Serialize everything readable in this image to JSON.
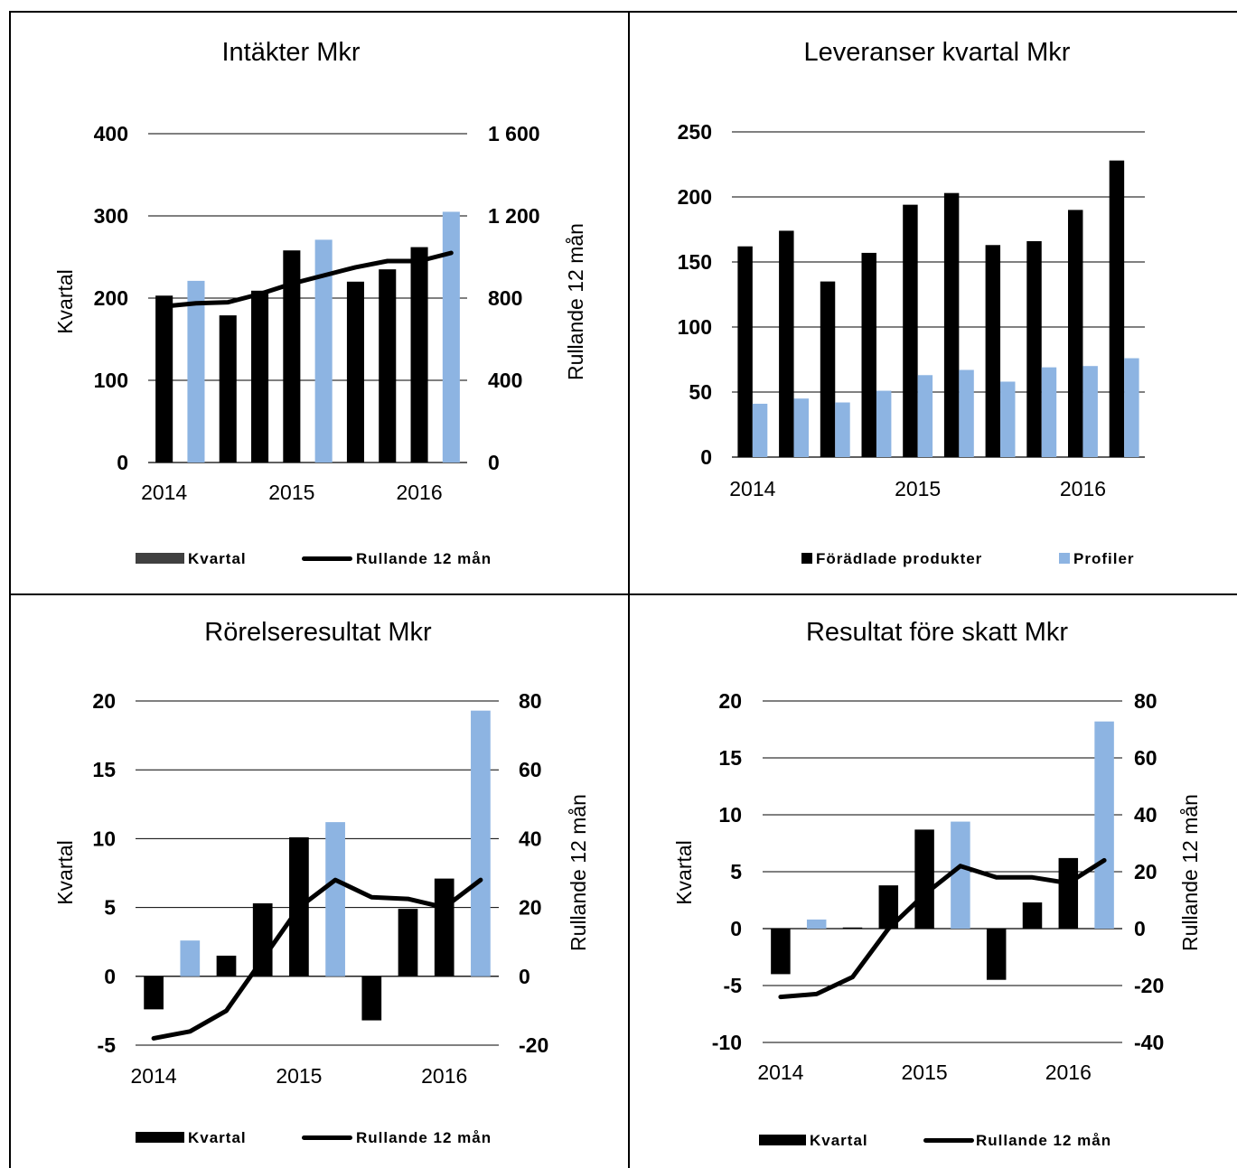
{
  "colors": {
    "dark": "#000000",
    "light": "#8db4e2",
    "legend_gray": "#404040"
  },
  "chart_data": [
    {
      "type": "bar",
      "title": "Intäkter Mkr",
      "categories": [
        "2014 Q1",
        "2014 Q2",
        "2014 Q3",
        "2014 Q4",
        "2015 Q1",
        "2015 Q2",
        "2015 Q3",
        "2015 Q4",
        "2016 Q1",
        "2016 Q2"
      ],
      "x_tick_labels": [
        "2014",
        "2015",
        "2016"
      ],
      "ylabel": "Kvartal",
      "y2label": "Rullande 12 mån",
      "ylim": [
        0,
        400
      ],
      "y2lim": [
        0,
        1600
      ],
      "y_ticks": [
        "400",
        "300",
        "200",
        "100",
        "0"
      ],
      "y2_ticks": [
        "1 600",
        "1 200",
        "800",
        "400",
        "0"
      ],
      "bar_colors": [
        "dark",
        "light",
        "dark",
        "dark",
        "dark",
        "light",
        "dark",
        "dark",
        "dark",
        "light"
      ],
      "series": [
        {
          "name": "Kvartal",
          "kind": "bar",
          "axis": "left",
          "values": [
            203,
            221,
            179,
            209,
            258,
            271,
            220,
            235,
            262,
            305
          ]
        },
        {
          "name": "Rullande 12 mån",
          "kind": "line",
          "axis": "right",
          "values": [
            760,
            775,
            780,
            820,
            870,
            910,
            950,
            980,
            980,
            1020
          ]
        }
      ],
      "legend": {
        "position": "bottom",
        "items": [
          {
            "label": "Kvartal",
            "marker": "bar",
            "color": "legend_gray"
          },
          {
            "label": "Rullande 12 mån",
            "marker": "line",
            "color": "dark"
          }
        ]
      }
    },
    {
      "type": "bar",
      "title": "Leveranser kvartal Mkr",
      "categories": [
        "2014 Q1",
        "2014 Q2",
        "2014 Q3",
        "2014 Q4",
        "2015 Q1",
        "2015 Q2",
        "2015 Q3",
        "2015 Q4",
        "2016 Q1",
        "2016 Q2"
      ],
      "x_tick_labels": [
        "2014",
        "2015",
        "2016"
      ],
      "ylim": [
        0,
        250
      ],
      "y_ticks": [
        "250",
        "200",
        "150",
        "100",
        "50",
        "0"
      ],
      "series": [
        {
          "name": "Förädlade produkter",
          "kind": "bar",
          "axis": "left",
          "color": "dark",
          "values": [
            162,
            174,
            135,
            157,
            194,
            203,
            163,
            166,
            190,
            228
          ]
        },
        {
          "name": "Profiler",
          "kind": "bar",
          "axis": "left",
          "color": "light",
          "values": [
            41,
            45,
            42,
            51,
            63,
            67,
            58,
            69,
            70,
            76
          ]
        }
      ],
      "legend": {
        "position": "bottom",
        "items": [
          {
            "label": "Förädlade produkter",
            "marker": "square",
            "color": "dark"
          },
          {
            "label": "Profiler",
            "marker": "square",
            "color": "light"
          }
        ]
      }
    },
    {
      "type": "bar",
      "title": "Rörelseresultat Mkr",
      "categories": [
        "2014 Q1",
        "2014 Q2",
        "2014 Q3",
        "2014 Q4",
        "2015 Q1",
        "2015 Q2",
        "2015 Q3",
        "2015 Q4",
        "2016 Q1",
        "2016 Q2"
      ],
      "x_tick_labels": [
        "2014",
        "2015",
        "2016"
      ],
      "ylabel": "Kvartal",
      "y2label": "Rullande 12 mån",
      "ylim": [
        -5,
        20
      ],
      "y2lim": [
        -20,
        80
      ],
      "y_ticks": [
        "20",
        "15",
        "10",
        "5",
        "0",
        "-5"
      ],
      "y2_ticks": [
        "80",
        "60",
        "40",
        "20",
        "0",
        "-20"
      ],
      "bar_colors": [
        "dark",
        "light",
        "dark",
        "dark",
        "dark",
        "light",
        "dark",
        "dark",
        "dark",
        "light"
      ],
      "series": [
        {
          "name": "Kvartal",
          "kind": "bar",
          "axis": "left",
          "values": [
            -2.4,
            2.6,
            1.5,
            5.3,
            10.1,
            11.2,
            -3.2,
            4.9,
            7.1,
            19.3
          ]
        },
        {
          "name": "Rullande 12 mån",
          "kind": "line",
          "axis": "right",
          "values": [
            -18,
            -16,
            -10,
            5,
            20,
            28,
            23,
            22.5,
            20,
            28
          ]
        }
      ],
      "legend": {
        "position": "bottom",
        "items": [
          {
            "label": "Kvartal",
            "marker": "bar",
            "color": "dark"
          },
          {
            "label": "Rullande 12 mån",
            "marker": "line",
            "color": "dark"
          }
        ]
      }
    },
    {
      "type": "bar",
      "title": "Resultat före skatt Mkr",
      "categories": [
        "2014 Q1",
        "2014 Q2",
        "2014 Q3",
        "2014 Q4",
        "2015 Q1",
        "2015 Q2",
        "2015 Q3",
        "2015 Q4",
        "2016 Q1",
        "2016 Q2"
      ],
      "x_tick_labels": [
        "2014",
        "2015",
        "2016"
      ],
      "ylabel": "Kvartal",
      "y2label": "Rullande 12 mån",
      "ylim": [
        -10,
        20
      ],
      "y2lim": [
        -40,
        80
      ],
      "y_ticks": [
        "20",
        "15",
        "10",
        "5",
        "0",
        "-5",
        "-10"
      ],
      "y2_ticks": [
        "80",
        "60",
        "40",
        "20",
        "0",
        "-20",
        "-40"
      ],
      "bar_colors": [
        "dark",
        "light",
        "dark",
        "dark",
        "dark",
        "light",
        "dark",
        "dark",
        "dark",
        "light"
      ],
      "series": [
        {
          "name": "Kvartal",
          "kind": "bar",
          "axis": "left",
          "values": [
            -4,
            0.8,
            0.1,
            3.8,
            8.7,
            9.4,
            -4.5,
            2.3,
            6.2,
            18.2
          ]
        },
        {
          "name": "Rullande 12 mån",
          "kind": "line",
          "axis": "right",
          "values": [
            -24,
            -23,
            -17,
            0,
            12,
            22,
            18,
            18,
            16,
            24
          ]
        }
      ],
      "legend": {
        "position": "bottom",
        "items": [
          {
            "label": "Kvartal",
            "marker": "bar",
            "color": "dark"
          },
          {
            "label": "Rullande 12 mån",
            "marker": "line",
            "color": "dark"
          }
        ]
      }
    }
  ]
}
